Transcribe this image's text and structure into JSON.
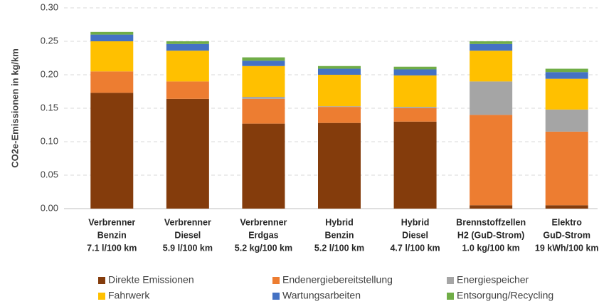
{
  "chart_data": {
    "type": "stacked_bar",
    "y_label": "CO2e-Emissionen in kg/km",
    "categories": [
      [
        "Verbrenner",
        "Benzin",
        "7.1 l/100 km"
      ],
      [
        "Verbrenner",
        "Diesel",
        "5.9 l/100 km"
      ],
      [
        "Verbrenner",
        "Erdgas",
        "5.2 kg/100 km"
      ],
      [
        "Hybrid",
        "Benzin",
        "5.2 l/100 km"
      ],
      [
        "Hybrid",
        "Diesel",
        "4.7 l/100 km"
      ],
      [
        "Brennstoffzellen",
        "H2 (GuD-Strom)",
        "1.0 kg/100 km"
      ],
      [
        "Elektro",
        "GuD-Strom",
        "19 kWh/100 km"
      ]
    ],
    "series": [
      {
        "name": "Direkte Emissionen",
        "color": "#843c0c",
        "values": [
          0.173,
          0.164,
          0.127,
          0.128,
          0.13,
          0.005,
          0.005
        ]
      },
      {
        "name": "Endenergiebereitstellung",
        "color": "#ed7d31",
        "values": [
          0.032,
          0.026,
          0.037,
          0.024,
          0.02,
          0.135,
          0.11
        ]
      },
      {
        "name": "Energiespeicher",
        "color": "#a5a5a5",
        "values": [
          0,
          0,
          0.003,
          0.001,
          0.002,
          0.05,
          0.033
        ]
      },
      {
        "name": "Fahrwerk",
        "color": "#ffc000",
        "values": [
          0.045,
          0.046,
          0.046,
          0.047,
          0.047,
          0.046,
          0.046
        ]
      },
      {
        "name": "Wartungsarbeiten",
        "color": "#4472c4",
        "values": [
          0.01,
          0.01,
          0.008,
          0.009,
          0.009,
          0.01,
          0.01
        ]
      },
      {
        "name": "Entsorgung/Recycling",
        "color": "#70ad47",
        "values": [
          0.004,
          0.004,
          0.005,
          0.004,
          0.004,
          0.004,
          0.005
        ]
      }
    ],
    "ylim": [
      0,
      0.3
    ],
    "yticks": [
      {
        "value": 0,
        "label": "0.00"
      },
      {
        "value": 0.05,
        "label": "0.05"
      },
      {
        "value": 0.1,
        "label": "0.10"
      },
      {
        "value": 0.15,
        "label": "0.15"
      },
      {
        "value": 0.2,
        "label": "0.20"
      },
      {
        "value": 0.25,
        "label": "0.25"
      },
      {
        "value": 0.3,
        "label": "0.30"
      }
    ],
    "grid": true,
    "legend": "bottom"
  }
}
